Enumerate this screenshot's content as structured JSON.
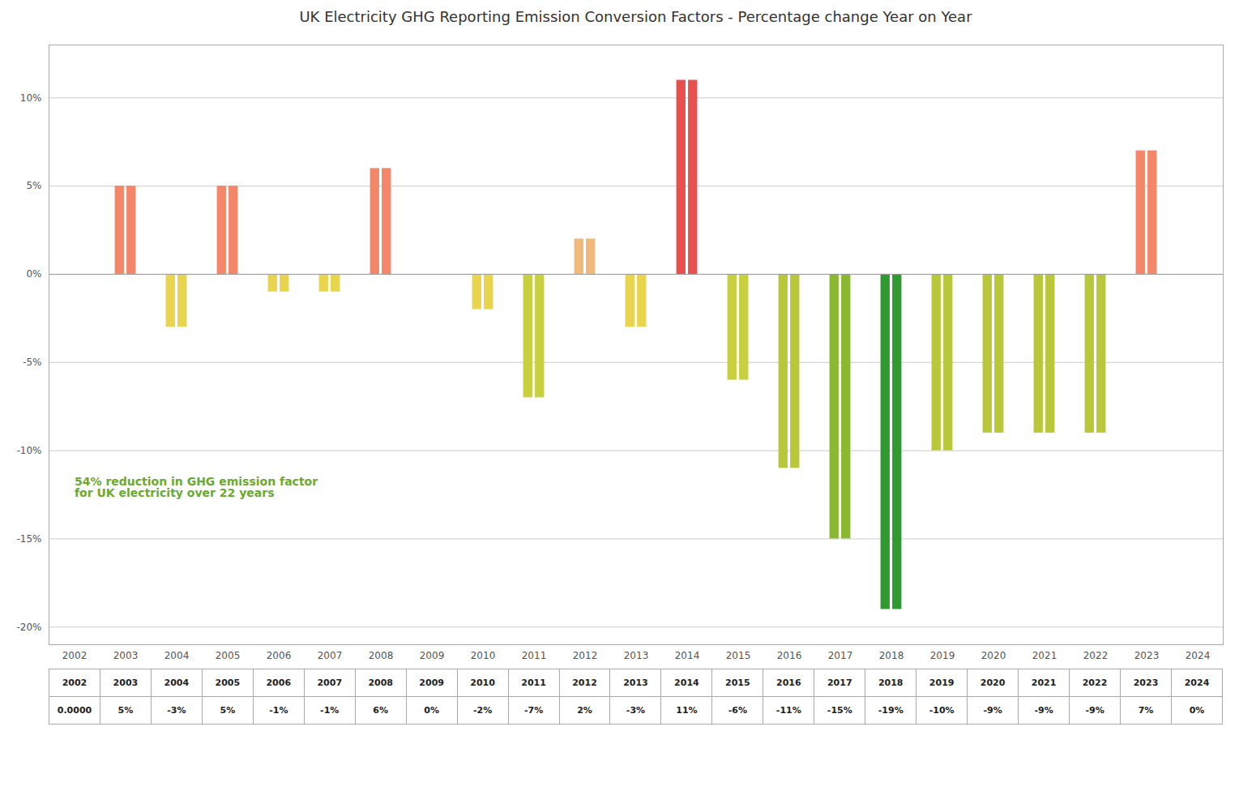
{
  "chart_data": {
    "type": "bar",
    "title": "UK Electricity GHG Reporting Emission Conversion Factors - Percentage change Year on Year",
    "categories": [
      "2002",
      "2003",
      "2004",
      "2005",
      "2006",
      "2007",
      "2008",
      "2009",
      "2010",
      "2011",
      "2012",
      "2013",
      "2014",
      "2015",
      "2016",
      "2017",
      "2018",
      "2019",
      "2020",
      "2021",
      "2022",
      "2023",
      "2024"
    ],
    "values": [
      0.0,
      5.0,
      -3.0,
      5.0,
      -1.0,
      -1.0,
      6.0,
      0.0,
      -2.0,
      -7.0,
      2.0,
      -3.0,
      11.0,
      -6.0,
      -11.0,
      -15.0,
      -19.0,
      -10.0,
      -9.0,
      -9.0,
      -9.0,
      7.0,
      0.0
    ],
    "colors": [
      "#ffffff",
      "#f4876a",
      "#e8d44d",
      "#f4876a",
      "#e8d44d",
      "#e8d44d",
      "#f4876a",
      "#e8d44d",
      "#e8d44d",
      "#c8d040",
      "#f0b97a",
      "#e8d44d",
      "#e85050",
      "#c8d040",
      "#b8c83a",
      "#8ab830",
      "#2e9a30",
      "#b8c83a",
      "#b8c83a",
      "#b8c83a",
      "#b8c83a",
      "#f4876a",
      "#e8d44d"
    ],
    "ylim": [
      -21,
      13
    ],
    "yticks": [
      {
        "value": -20,
        "label": "-20%"
      },
      {
        "value": -15,
        "label": "-15%"
      },
      {
        "value": -10,
        "label": "-10%"
      },
      {
        "value": -5,
        "label": "-5%"
      },
      {
        "value": 0,
        "label": "0%"
      },
      {
        "value": 5,
        "label": "5%"
      },
      {
        "value": 10,
        "label": "10%"
      }
    ],
    "grid": true,
    "annotations": [
      {
        "text": "54% reduction in GHG emission factor\nfor UK electricity over 22 years",
        "x": "2002",
        "y": -11.5,
        "color": "#6aaa30"
      }
    ],
    "table_rows": [
      [
        "2002",
        "2003",
        "2004",
        "2005",
        "2006",
        "2007",
        "2008",
        "2009",
        "2010",
        "2011",
        "2012",
        "2013",
        "2014",
        "2015",
        "2016",
        "2017",
        "2018",
        "2019",
        "2020",
        "2021",
        "2022",
        "2023",
        "2024"
      ],
      [
        "0.0000",
        "5%",
        "-3%",
        "5%",
        "-1%",
        "-1%",
        "6%",
        "0%",
        "-2%",
        "-7%",
        "2%",
        "-3%",
        "11%",
        "-6%",
        "-11%",
        "-15%",
        "-19%",
        "-10%",
        "-9%",
        "-9%",
        "-9%",
        "7%",
        "0%"
      ]
    ]
  }
}
